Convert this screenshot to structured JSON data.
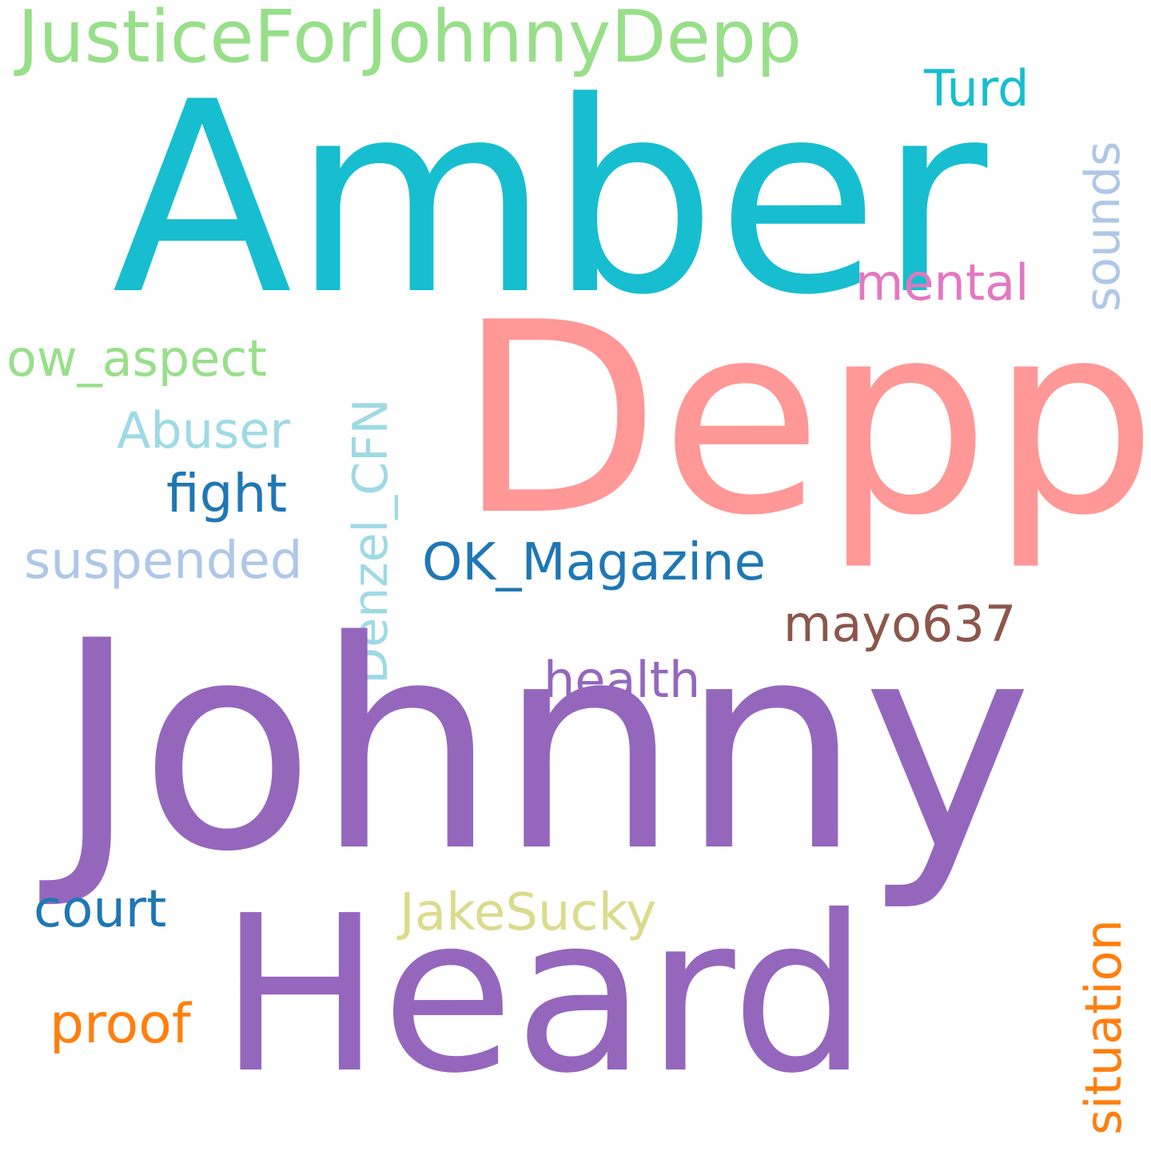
{
  "words": [
    {
      "key": "amber",
      "text": "Amber",
      "color": "#17becf"
    },
    {
      "key": "depp",
      "text": "Depp",
      "color": "#ff9896"
    },
    {
      "key": "johnny",
      "text": "Johnny",
      "color": "#9467bd"
    },
    {
      "key": "heard",
      "text": "Heard",
      "color": "#9467bd"
    },
    {
      "key": "justice",
      "text": "JusticeForJohnnyDepp",
      "color": "#98df8a"
    },
    {
      "key": "turd",
      "text": "Turd",
      "color": "#17becf"
    },
    {
      "key": "sounds",
      "text": "sounds",
      "color": "#aec7e8"
    },
    {
      "key": "mental",
      "text": "mental",
      "color": "#e377c2"
    },
    {
      "key": "ow_aspect",
      "text": "ow_aspect",
      "color": "#98df8a"
    },
    {
      "key": "abuser",
      "text": "Abuser",
      "color": "#9edae5"
    },
    {
      "key": "fight",
      "text": "fight",
      "color": "#1f77b4"
    },
    {
      "key": "suspended",
      "text": "suspended",
      "color": "#aec7e8"
    },
    {
      "key": "denzel",
      "text": "Denzel_CFN",
      "color": "#9edae5"
    },
    {
      "key": "ok_magazine",
      "text": "OK_Magazine",
      "color": "#1f77b4"
    },
    {
      "key": "mayo637",
      "text": "mayo637",
      "color": "#8c564b"
    },
    {
      "key": "health",
      "text": "health",
      "color": "#9467bd"
    },
    {
      "key": "court",
      "text": "court",
      "color": "#1f77b4"
    },
    {
      "key": "jakesucky",
      "text": "JakeSucky",
      "color": "#dbdb8d"
    },
    {
      "key": "proof",
      "text": "proof",
      "color": "#ff7f0e"
    },
    {
      "key": "situation",
      "text": "situation",
      "color": "#ff7f0e"
    }
  ]
}
